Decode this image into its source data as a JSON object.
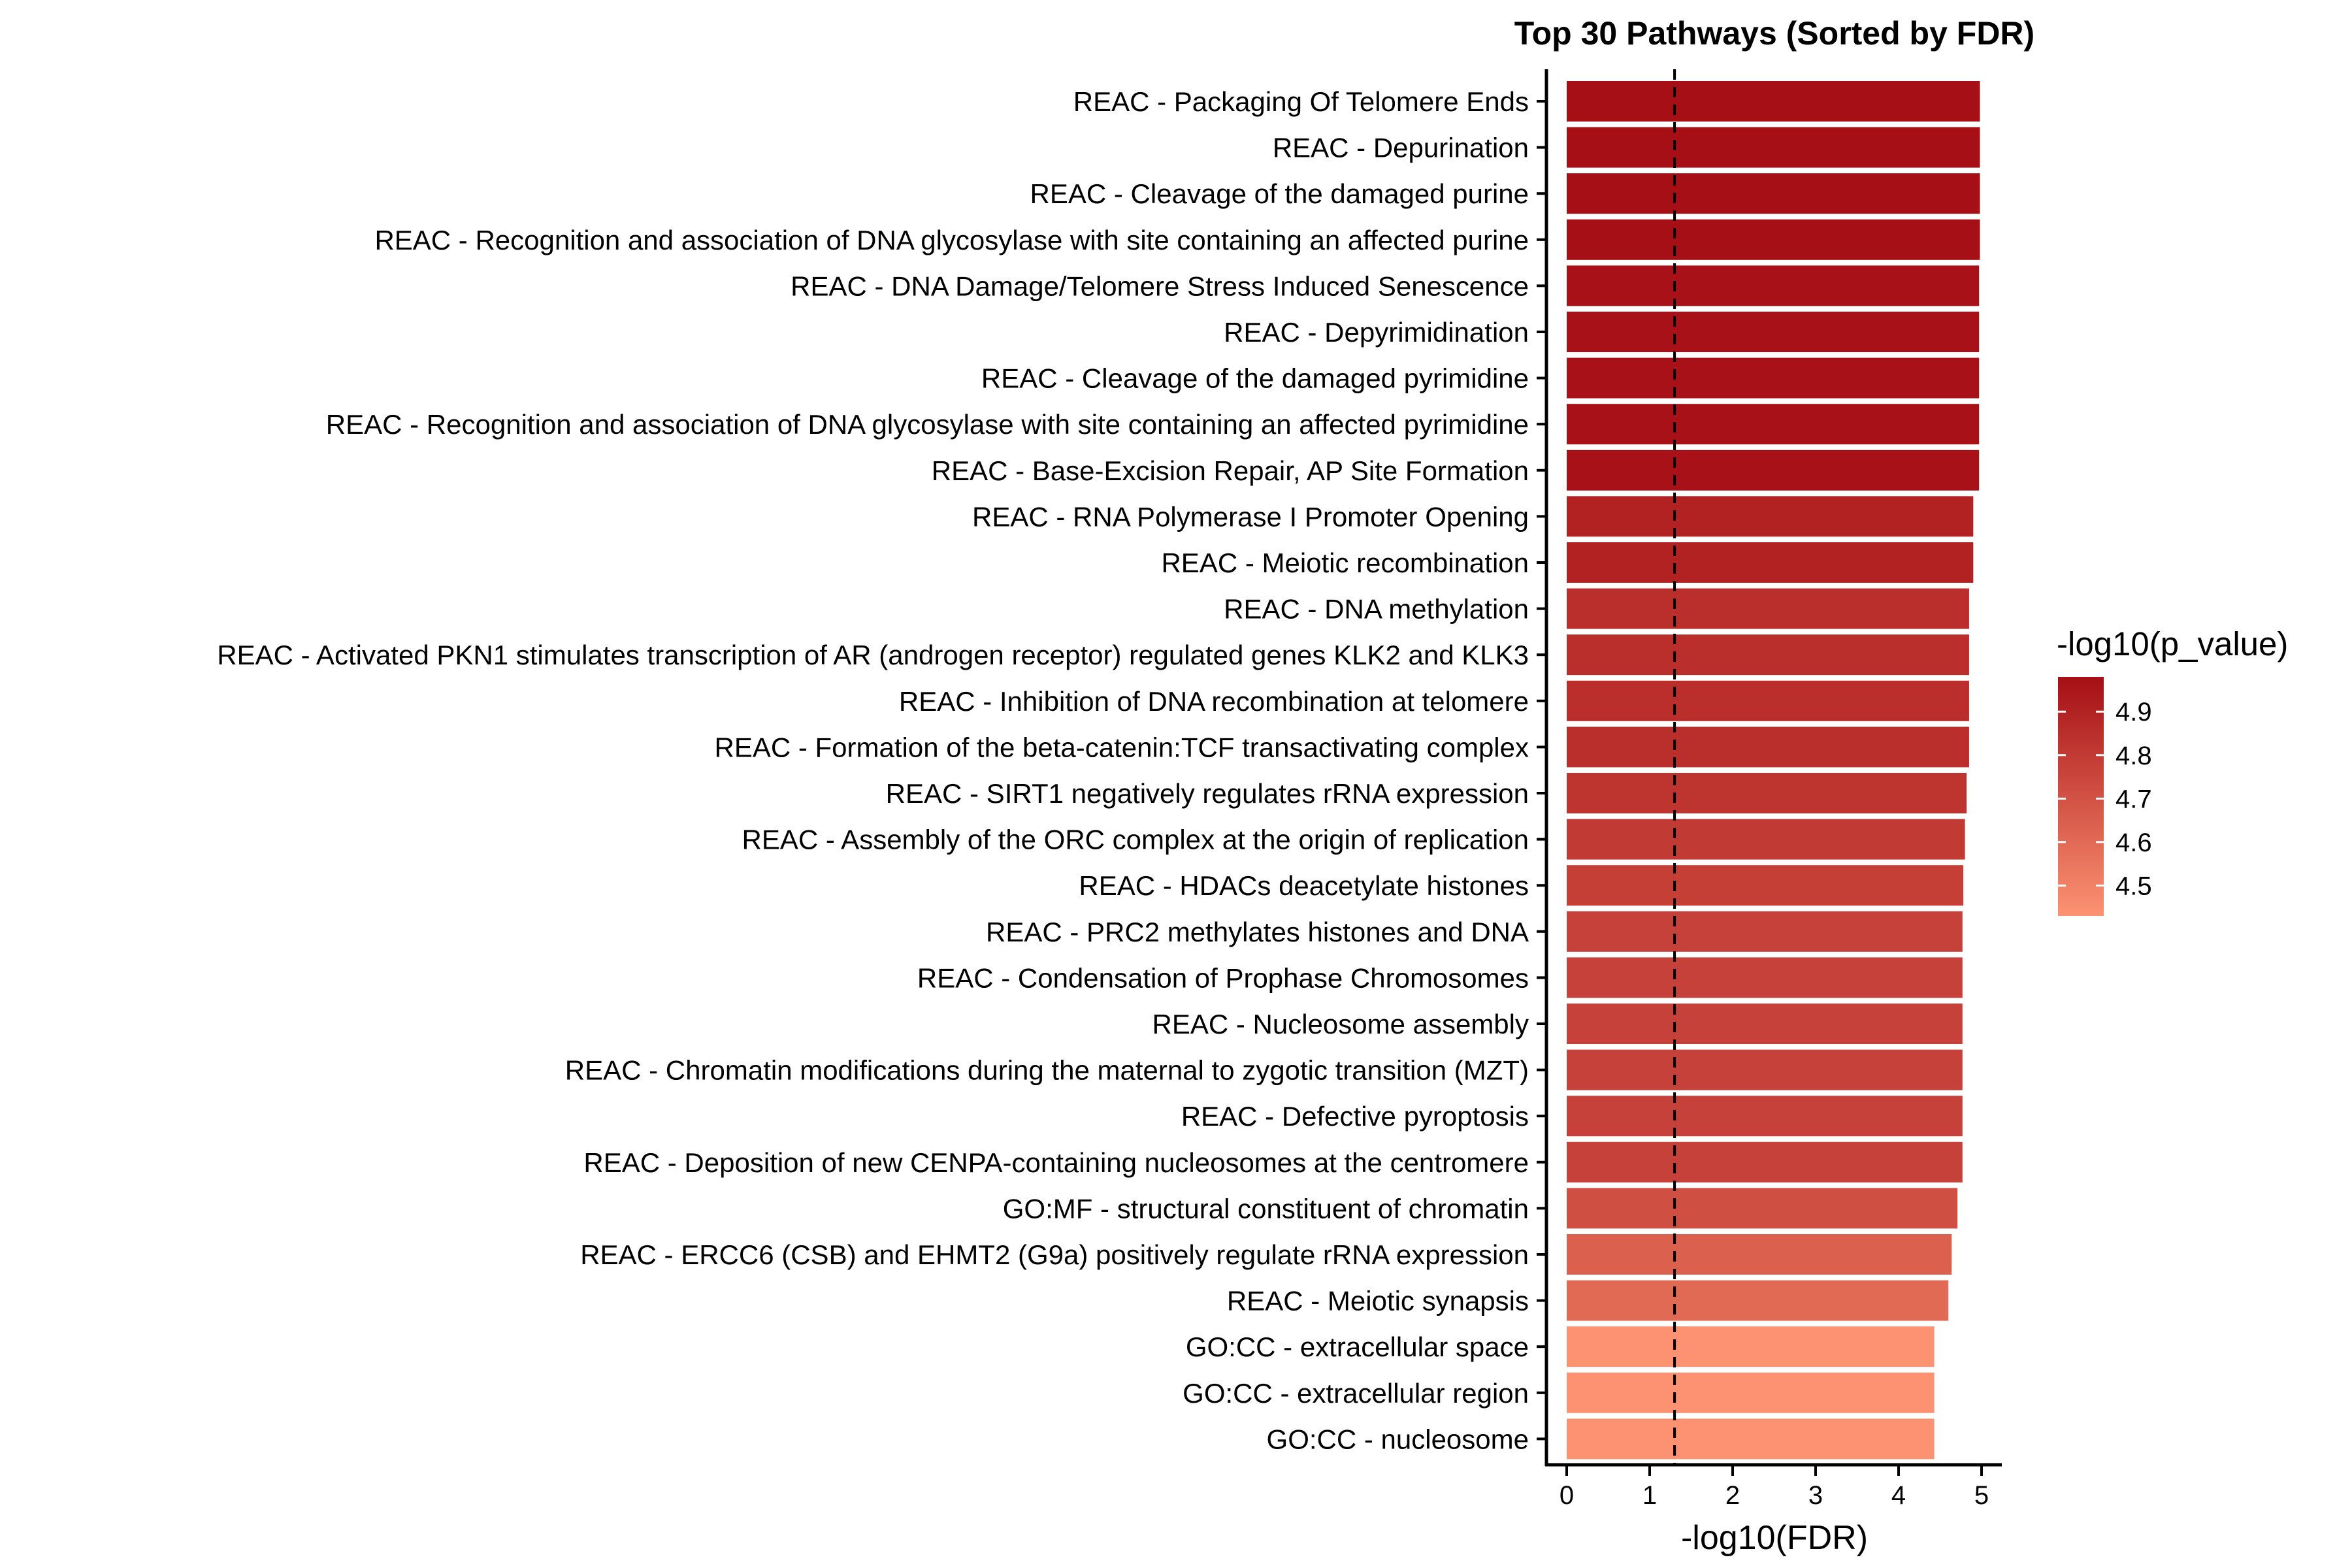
{
  "chart_data": {
    "type": "bar",
    "orientation": "horizontal",
    "title": "Top 30 Pathways (Sorted by FDR)",
    "xlabel": "-log10(FDR)",
    "ylabel": "",
    "xlim": [
      -0.25,
      5.25
    ],
    "x_ticks": [
      0,
      1,
      2,
      3,
      4,
      5
    ],
    "x_tick_labels": [
      "0",
      "1",
      "2",
      "3",
      "4",
      "5"
    ],
    "reference_line": {
      "x": 1.3,
      "style": "dashed"
    },
    "grid": false,
    "legend_position": "right",
    "color_scale": {
      "title": "-log10(p_value)",
      "min": 4.43,
      "max": 4.98,
      "low_color": "#FC9272",
      "high_color": "#A50F15",
      "ticks": [
        4.5,
        4.6,
        4.7,
        4.8,
        4.9
      ],
      "tick_labels": [
        "4.5",
        "4.6",
        "4.7",
        "4.8",
        "4.9"
      ]
    },
    "categories": [
      "REAC - Packaging Of Telomere Ends",
      "REAC - Depurination",
      "REAC - Cleavage of the damaged purine",
      "REAC - Recognition and association of DNA glycosylase with site containing an affected purine",
      "REAC - DNA Damage/Telomere Stress Induced Senescence",
      "REAC - Depyrimidination",
      "REAC - Cleavage of the damaged pyrimidine ",
      "REAC - Recognition and association of DNA glycosylase with site containing an affected pyrimidine",
      "REAC - Base-Excision Repair, AP Site Formation",
      "REAC - RNA Polymerase I Promoter Opening",
      "REAC - Meiotic recombination",
      "REAC - DNA methylation",
      "REAC - Activated PKN1 stimulates transcription of AR (androgen receptor) regulated genes KLK2 and KLK3",
      "REAC - Inhibition of DNA recombination at telomere",
      "REAC - Formation of the beta-catenin:TCF transactivating complex",
      "REAC - SIRT1 negatively regulates rRNA expression",
      "REAC - Assembly of the ORC complex at the origin of replication",
      "REAC - HDACs deacetylate histones",
      "REAC - PRC2 methylates histones and DNA",
      "REAC - Condensation of Prophase Chromosomes",
      "REAC - Nucleosome assembly",
      "REAC - Chromatin modifications during the maternal to zygotic transition (MZT)",
      "REAC - Defective pyroptosis",
      "REAC - Deposition of new CENPA-containing nucleosomes at the centromere",
      "GO:MF - structural constituent of chromatin",
      "REAC - ERCC6 (CSB) and EHMT2 (G9a) positively regulate rRNA expression",
      "REAC - Meiotic synapsis",
      "GO:CC - extracellular space",
      "GO:CC - extracellular region",
      "GO:CC - nucleosome"
    ],
    "values": [
      4.98,
      4.98,
      4.98,
      4.98,
      4.97,
      4.97,
      4.97,
      4.97,
      4.97,
      4.9,
      4.9,
      4.85,
      4.85,
      4.85,
      4.85,
      4.82,
      4.8,
      4.78,
      4.77,
      4.77,
      4.77,
      4.77,
      4.77,
      4.77,
      4.71,
      4.64,
      4.6,
      4.43,
      4.43,
      4.43
    ],
    "color_values": [
      4.98,
      4.98,
      4.98,
      4.98,
      4.97,
      4.97,
      4.97,
      4.97,
      4.97,
      4.9,
      4.9,
      4.85,
      4.85,
      4.85,
      4.85,
      4.82,
      4.8,
      4.78,
      4.77,
      4.77,
      4.77,
      4.77,
      4.77,
      4.77,
      4.71,
      4.64,
      4.6,
      4.43,
      4.43,
      4.43
    ]
  }
}
